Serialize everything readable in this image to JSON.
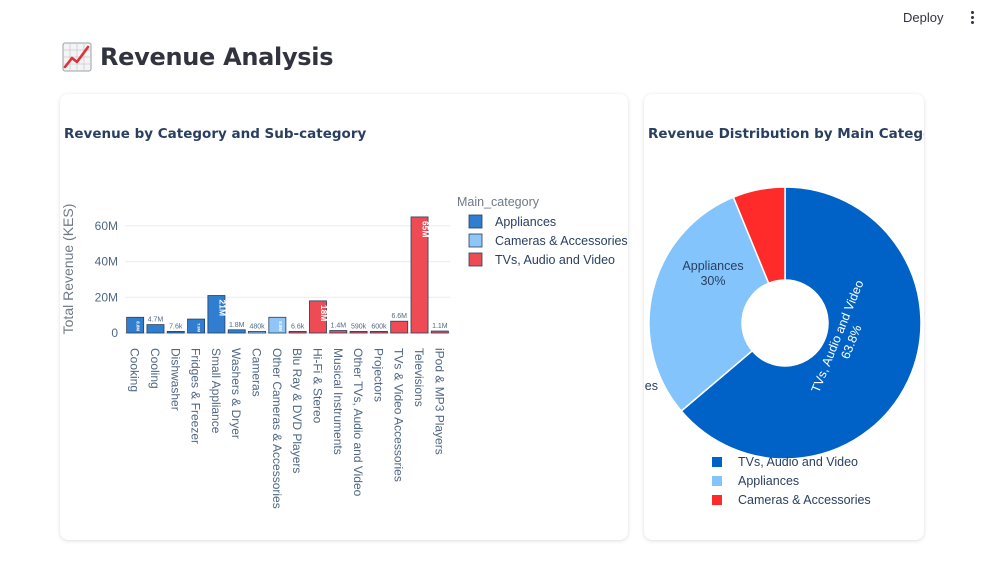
{
  "toolbar": {
    "deploy_label": "Deploy"
  },
  "page": {
    "title": "Revenue Analysis",
    "icon": "chart-increasing-icon"
  },
  "colors": {
    "appliances": "#2f7ed0",
    "cameras": "#8fc6f7",
    "tvs": "#ef4b55",
    "pie_tvs": "#0062c6",
    "pie_appliances": "#82c4fb",
    "pie_cameras": "#ff2b2b"
  },
  "bar_chart": {
    "title": "Revenue by Category and Sub-category",
    "legend_title": "Main_category",
    "legend_items": [
      "Appliances",
      "Cameras & Accessories",
      "TVs, Audio and Video"
    ]
  },
  "pie_chart": {
    "title": "Revenue Distribution by Main Category",
    "legend_items": [
      "TVs, Audio and Video",
      "Appliances",
      "Cameras & Accessories"
    ],
    "clipped_label": "ies"
  },
  "chart_data": [
    {
      "type": "bar",
      "title": "Revenue by Category and Sub-category",
      "ylabel": "Total Revenue (KES)",
      "xlabel": "",
      "ylim": [
        0,
        70000000
      ],
      "yticks": [
        0,
        20000000,
        40000000,
        60000000
      ],
      "ytick_labels": [
        "0",
        "20M",
        "40M",
        "60M"
      ],
      "grid": true,
      "legend_placement": "top-right",
      "categories": [
        "Cooking",
        "Cooling",
        "Dishwasher",
        "Fridges & Freezer",
        "Small Appliance",
        "Washers & Dryer",
        "Cameras",
        "Other Cameras & Accessories",
        "Blu Ray & DVD Players",
        "Hi-Fi & Stereo",
        "Musical Instruments",
        "Other TVs, Audio and Video",
        "Projectors",
        "TVs & Video Accessories",
        "Televisions",
        "iPod & MP3 Players"
      ],
      "series_of_category": [
        "Appliances",
        "Appliances",
        "Appliances",
        "Appliances",
        "Appliances",
        "Appliances",
        "Cameras & Accessories",
        "Cameras & Accessories",
        "TVs, Audio and Video",
        "TVs, Audio and Video",
        "TVs, Audio and Video",
        "TVs, Audio and Video",
        "TVs, Audio and Video",
        "TVs, Audio and Video",
        "TVs, Audio and Video",
        "TVs, Audio and Video"
      ],
      "values": [
        8800000,
        4700000,
        7600,
        7800000,
        21000000,
        1800000,
        480000,
        8800000,
        6600,
        18000000,
        1400000,
        590000,
        600000,
        6600000,
        65000000,
        1100000
      ],
      "value_labels": [
        "8.8M",
        "4.7M",
        "7.6k",
        "7.8M",
        "21M",
        "1.8M",
        "480k",
        "8.8M",
        "6.6k",
        "18M",
        "1.4M",
        "590k",
        "600k",
        "6.6M",
        "65M",
        "1.1M"
      ],
      "series": [
        {
          "name": "Appliances"
        },
        {
          "name": "Cameras & Accessories"
        },
        {
          "name": "TVs, Audio and Video"
        }
      ]
    },
    {
      "type": "pie",
      "title": "Revenue Distribution by Main Category",
      "hole": true,
      "legend_placement": "bottom",
      "categories": [
        "TVs, Audio and Video",
        "Appliances",
        "Cameras & Accessories"
      ],
      "values": [
        63.8,
        30,
        6.2
      ],
      "slice_labels": [
        {
          "name": "TVs, Audio and Video",
          "pct": "63.8%"
        },
        {
          "name": "Appliances",
          "pct": "30%"
        },
        {
          "name": "Cameras & Accessories",
          "pct": ""
        }
      ]
    }
  ]
}
